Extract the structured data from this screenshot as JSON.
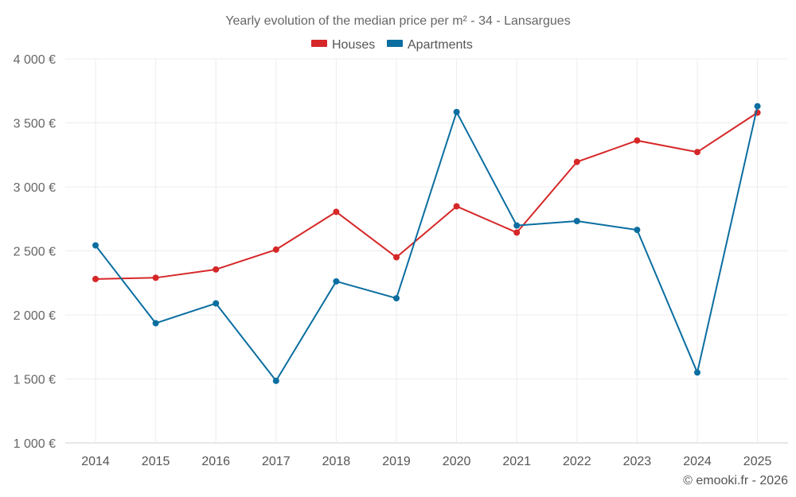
{
  "chart_data": {
    "type": "line",
    "title": "Yearly evolution of the median price per m² - 34 - Lansargues",
    "categories": [
      "2014",
      "2015",
      "2016",
      "2017",
      "2018",
      "2019",
      "2020",
      "2021",
      "2022",
      "2023",
      "2024",
      "2025"
    ],
    "series": [
      {
        "name": "Houses",
        "color": "#d62728",
        "values": [
          2280,
          2290,
          2355,
          2510,
          2805,
          2450,
          2848,
          2643,
          3195,
          3362,
          3272,
          3580
        ]
      },
      {
        "name": "Apartments",
        "color": "#0b6ea0",
        "values": [
          2543,
          1935,
          2090,
          1485,
          2262,
          2130,
          3585,
          2698,
          2733,
          2664,
          1550,
          3630
        ]
      }
    ],
    "ylim": [
      1000,
      4000
    ],
    "yticks": [
      1000,
      1500,
      2000,
      2500,
      3000,
      3500,
      4000
    ],
    "ytick_labels": [
      "1 000 €",
      "1 500 €",
      "2 000 €",
      "2 500 €",
      "3 000 €",
      "3 500 €",
      "4 000 €"
    ],
    "legend_position": "top-center",
    "grid": true
  },
  "credit": "© emooki.fr - 2026"
}
